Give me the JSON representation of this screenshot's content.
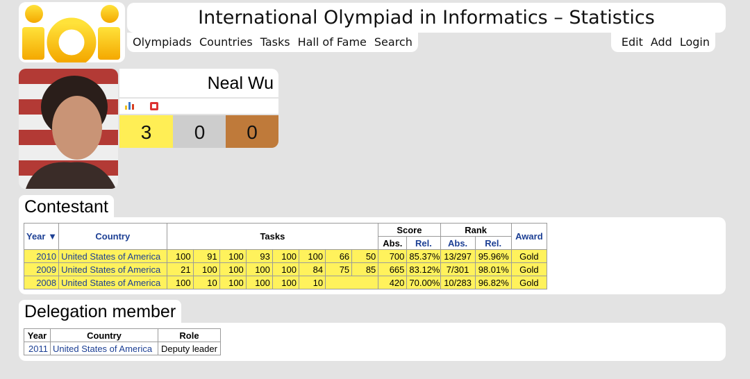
{
  "header": {
    "title": "International Olympiad in Informatics – Statistics",
    "nav": [
      "Olympiads",
      "Countries",
      "Tasks",
      "Hall of Fame",
      "Search"
    ],
    "user_nav": [
      "Edit",
      "Add",
      "Login"
    ]
  },
  "profile": {
    "name": "Neal Wu",
    "medals": {
      "gold": 3,
      "silver": 0,
      "bronze": 0
    }
  },
  "contestant": {
    "heading": "Contestant",
    "columns": {
      "year": "Year ▼",
      "country": "Country",
      "tasks": "Tasks",
      "score": {
        "label": "Score",
        "abs": "Abs.",
        "rel": "Rel."
      },
      "rank": {
        "label": "Rank",
        "abs": "Abs.",
        "rel": "Rel."
      },
      "award": "Award"
    },
    "rows": [
      {
        "year": 2010,
        "country": "United States of America",
        "tasks": [
          100,
          91,
          100,
          93,
          100,
          100,
          66,
          50
        ],
        "score_abs": 700,
        "score_rel": "85.37%",
        "rank_abs": "13/297",
        "rank_rel": "95.96%",
        "award": "Gold"
      },
      {
        "year": 2009,
        "country": "United States of America",
        "tasks": [
          21,
          100,
          100,
          100,
          100,
          84,
          75,
          85
        ],
        "score_abs": 665,
        "score_rel": "83.12%",
        "rank_abs": "7/301",
        "rank_rel": "98.01%",
        "award": "Gold"
      },
      {
        "year": 2008,
        "country": "United States of America",
        "tasks": [
          100,
          10,
          100,
          100,
          100,
          10
        ],
        "score_abs": 420,
        "score_rel": "70.00%",
        "rank_abs": "10/283",
        "rank_rel": "96.82%",
        "award": "Gold"
      }
    ]
  },
  "delegation": {
    "heading": "Delegation member",
    "columns": {
      "year": "Year",
      "country": "Country",
      "role": "Role"
    },
    "rows": [
      {
        "year": 2011,
        "country": "United States of America",
        "role": "Deputy leader"
      }
    ]
  }
}
